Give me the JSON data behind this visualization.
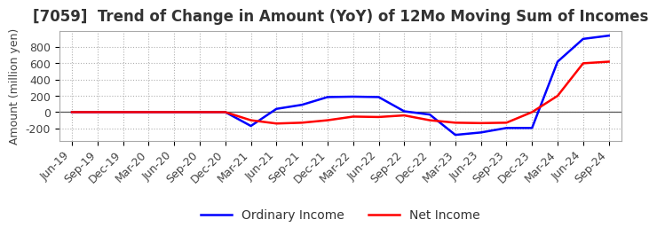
{
  "title": "[7059]  Trend of Change in Amount (YoY) of 12Mo Moving Sum of Incomes",
  "ylabel": "Amount (million yen)",
  "x_labels": [
    "Jun-19",
    "Sep-19",
    "Dec-19",
    "Mar-20",
    "Jun-20",
    "Sep-20",
    "Dec-20",
    "Mar-21",
    "Jun-21",
    "Sep-21",
    "Dec-21",
    "Mar-22",
    "Jun-22",
    "Sep-22",
    "Dec-22",
    "Mar-23",
    "Jun-23",
    "Sep-23",
    "Dec-23",
    "Mar-24",
    "Jun-24",
    "Sep-24"
  ],
  "ordinary_income": [
    0,
    0,
    0,
    0,
    0,
    0,
    0,
    -170,
    40,
    90,
    185,
    190,
    185,
    10,
    -30,
    -280,
    -250,
    -195,
    -195,
    620,
    900,
    940
  ],
  "net_income": [
    0,
    0,
    0,
    0,
    0,
    0,
    0,
    -100,
    -140,
    -130,
    -100,
    -55,
    -60,
    -40,
    -100,
    -130,
    -135,
    -130,
    0,
    200,
    600,
    620
  ],
  "ordinary_color": "#0000ff",
  "net_color": "#ff0000",
  "ylim_min": -350,
  "ylim_max": 1000,
  "yticks": [
    -200,
    0,
    200,
    400,
    600,
    800
  ],
  "grid_color": "#b0b0b0",
  "background_color": "#ffffff",
  "title_fontsize": 12,
  "axis_fontsize": 9,
  "legend_fontsize": 10,
  "linewidth": 1.8
}
